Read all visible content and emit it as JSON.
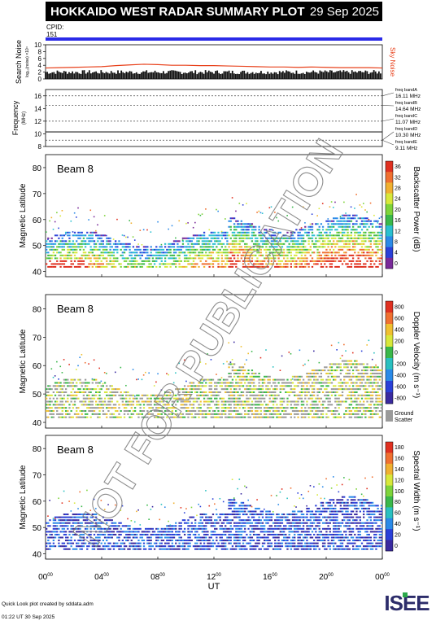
{
  "header": {
    "title": "HOKKAIDO WEST RADAR SUMMARY PLOT",
    "date": "29 Sep 2025",
    "cpid_label": "CPID:",
    "cpid_value": "151"
  },
  "colors": {
    "header_bg": "#000000",
    "header_text": "#ffffff",
    "cpid_bar": "#2a2ae8",
    "sky_noise": "#e8401a",
    "freq_marker": "#444444",
    "ground_scatter": "#9a9a9a"
  },
  "x_axis": {
    "label": "UT",
    "ticks": [
      {
        "hour": 0,
        "text": "00",
        "sup": "00"
      },
      {
        "hour": 4,
        "text": "04",
        "sup": "00"
      },
      {
        "hour": 8,
        "text": "08",
        "sup": "00"
      },
      {
        "hour": 12,
        "text": "12",
        "sup": "00"
      },
      {
        "hour": 16,
        "text": "16",
        "sup": "00"
      },
      {
        "hour": 20,
        "text": "20",
        "sup": "00"
      },
      {
        "hour": 24,
        "text": "00",
        "sup": "00"
      }
    ]
  },
  "chart_data": [
    {
      "type": "line",
      "name": "search-noise",
      "ylabel": "Search Noise",
      "ylabel_sub": "log₁₀(noise) ×10⁴",
      "ylim": [
        0,
        10
      ],
      "yticks": [
        "0",
        "2",
        "4",
        "6",
        "8",
        "10"
      ],
      "side_label": "Sky Noise",
      "series": [
        {
          "name": "Sky Noise",
          "x": [
            0,
            1,
            2,
            3,
            4,
            5,
            6,
            7,
            8,
            9,
            10,
            11,
            12,
            13,
            14,
            15,
            16,
            17,
            18,
            19,
            20,
            21,
            22,
            23,
            24
          ],
          "values": [
            3.2,
            3.3,
            3.4,
            3.5,
            3.6,
            3.9,
            4.1,
            4.3,
            4.2,
            4.0,
            4.0,
            3.9,
            3.9,
            3.8,
            3.7,
            3.6,
            3.5,
            3.5,
            3.4,
            3.5,
            3.4,
            3.3,
            3.3,
            3.3,
            3.2
          ]
        }
      ]
    },
    {
      "type": "line",
      "name": "frequency",
      "ylabel": "Frequency",
      "ylabel_sub": "(MHz)",
      "ylim": [
        8,
        17
      ],
      "yticks": [
        "8",
        "10",
        "12",
        "14",
        "16"
      ],
      "dashed_levels": [
        16,
        14.5,
        12,
        9
      ],
      "solid_levels": [
        10.3
      ],
      "bands": [
        {
          "name": "freq bandA",
          "value": "16.11 MHz"
        },
        {
          "name": "freq bandB",
          "value": "14.64 MHz"
        },
        {
          "name": "freq bandC",
          "value": "11.07 MHz"
        },
        {
          "name": "freq bandD",
          "value": "10.30 MHz"
        },
        {
          "name": "freq bandE",
          "value": "9.11 MHz"
        }
      ]
    },
    {
      "type": "heatmap",
      "name": "backscatter-power",
      "beam_label": "Beam  8",
      "ylabel": "Magnetic Latitude",
      "ylim": [
        38,
        85
      ],
      "yticks": [
        "40",
        "50",
        "60",
        "70",
        "80"
      ],
      "colorbar_label": "Backscatter Power (dB)",
      "colorbar_ticks": [
        "0",
        "4",
        "8",
        "12",
        "16",
        "20",
        "24",
        "28",
        "32",
        "36"
      ]
    },
    {
      "type": "heatmap",
      "name": "doppler-velocity",
      "beam_label": "Beam  8",
      "ylabel": "Magnetic Latitude",
      "ylim": [
        38,
        85
      ],
      "yticks": [
        "40",
        "50",
        "60",
        "70",
        "80"
      ],
      "colorbar_label": "Doppler Velocity (m s⁻¹)",
      "colorbar_ticks": [
        "800",
        "600",
        "400",
        "200",
        "0",
        "-200",
        "-400",
        "-600",
        "-800"
      ],
      "ground_scatter_label": "Ground Scatter"
    },
    {
      "type": "heatmap",
      "name": "spectral-width",
      "beam_label": "Beam  8",
      "ylabel": "Magnetic Latitude",
      "ylim": [
        38,
        85
      ],
      "yticks": [
        "40",
        "50",
        "60",
        "70",
        "80"
      ],
      "colorbar_label": "Spectral Width (m s⁻¹)",
      "colorbar_ticks": [
        "0",
        "20",
        "40",
        "60",
        "80",
        "100",
        "120",
        "140",
        "160",
        "180"
      ]
    }
  ],
  "watermark": "NOT FOR PUBLICATION",
  "footer": {
    "line1": "Quick Look plot created by sddata.adm",
    "line2": "01:22 UT 30 Sep 2025",
    "logo": "ISEE"
  }
}
